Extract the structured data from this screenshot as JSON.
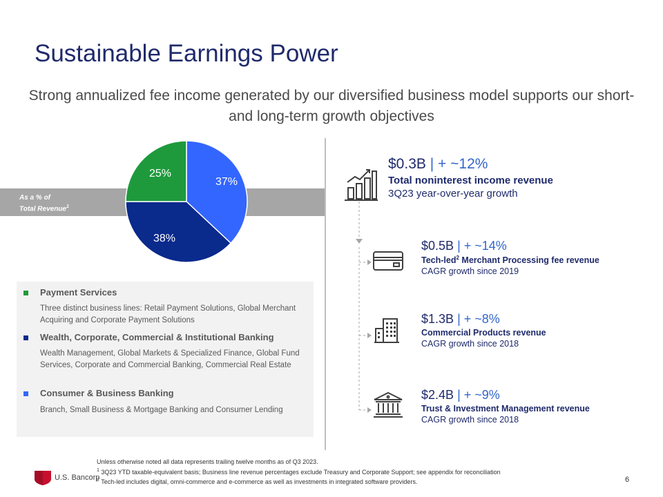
{
  "title": "Sustainable Earnings Power",
  "subtitle": "Strong annualized fee income generated by our diversified business model supports our short- and long-term growth objectives",
  "pie": {
    "band_label_line1": "As a % of",
    "band_label_line2": "Total Revenue",
    "band_label_sup": "1",
    "slices": [
      {
        "label": "37%",
        "value": 37,
        "color": "#3366ff"
      },
      {
        "label": "38%",
        "value": 38,
        "color": "#0a2a8c"
      },
      {
        "label": "25%",
        "value": 25,
        "color": "#1e9a3c"
      }
    ]
  },
  "legend": [
    {
      "title": "Payment Services",
      "color": "#1e9a3c",
      "desc": "Three distinct business lines: Retail Payment Solutions, Global Merchant Acquiring and Corporate Payment Solutions"
    },
    {
      "title": "Wealth, Corporate, Commercial & Institutional Banking",
      "color": "#0a2a8c",
      "desc": "Wealth Management, Global Markets & Specialized Finance, Global Fund Services, Corporate and Commercial Banking, Commercial Real Estate"
    },
    {
      "title": "Consumer & Business Banking",
      "color": "#3366ff",
      "desc": "Branch, Small Business & Mortgage Banking and Consumer Lending"
    }
  ],
  "metrics": {
    "total": {
      "amount": "$0.3B",
      "pipe": "|",
      "pct": "+ ~12%",
      "label": "Total noninterest income revenue",
      "sub": "3Q23 year-over-year growth",
      "icon": "bar-chart-growth-icon"
    },
    "merchant": {
      "amount": "$0.5B",
      "pipe": "|",
      "pct": "+ ~14%",
      "label_pre": "Tech-led",
      "label_sup": "2",
      "label_post": " Merchant Processing fee revenue",
      "sub": "CAGR growth since 2019",
      "icon": "credit-card-icon"
    },
    "commercial": {
      "amount": "$1.3B",
      "pipe": "|",
      "pct": "+ ~8%",
      "label": "Commercial Products revenue",
      "sub": "CAGR growth since 2018",
      "icon": "office-building-icon"
    },
    "trust": {
      "amount": "$2.4B",
      "pipe": "|",
      "pct": "+ ~9%",
      "label": "Trust & Investment Management revenue",
      "sub": "CAGR growth since 2018",
      "icon": "bank-building-icon"
    }
  },
  "footnotes": {
    "line0": "Unless otherwise noted all data represents trailing twelve months as of Q3 2023.",
    "sup1": "1",
    "line1": " 3Q23 YTD taxable-equivalent basis; Business line revenue percentages exclude Treasury and Corporate Support; see appendix for reconciliation",
    "sup2": "2",
    "line2": " Tech-led includes digital, omni-commerce and e-commerce as well as investments in integrated software providers."
  },
  "page_number": "6",
  "logo": {
    "text": "U.S. Bancorp",
    "icon": "us-bancorp-shield-logo",
    "color": "#c8102e"
  }
}
